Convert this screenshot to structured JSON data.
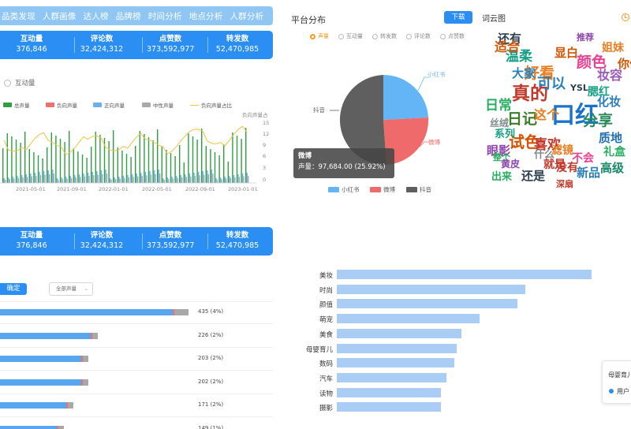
{
  "nav": [
    "品类发现",
    "人群画像",
    "达人榜",
    "品牌榜",
    "时间分析",
    "地点分析",
    "人群分析"
  ],
  "stats": [
    {
      "label": "互动量",
      "value": "376,846"
    },
    {
      "label": "评论数",
      "value": "32,424,312"
    },
    {
      "label": "点赞数",
      "value": "373,592,977"
    },
    {
      "label": "转发数",
      "value": "52,470,985"
    }
  ],
  "trend": {
    "radio_label": "互动量",
    "legend": [
      "总声量",
      "负向声量",
      "正向声量",
      "中性声量",
      "负向声量占比"
    ],
    "right_axis_title": "负向声量占",
    "right_ticks": [
      "15",
      "12",
      "9",
      "6",
      "3",
      "0"
    ],
    "x_ticks": [
      "2021-05-01",
      "2021-09-01",
      "2022-01-01",
      "2022-05-01",
      "2022-09-01",
      "2023-01-01"
    ],
    "colors": {
      "total": "#2ea043",
      "negative": "#f07070",
      "positive": "#6cb2ea",
      "neutral": "#a9a9a9",
      "ratio": "#f3c144"
    }
  },
  "list": {
    "confirm_label": "确定",
    "select_label": "全部声量",
    "rows": [
      {
        "label": "435 (4%)",
        "share": 0.77
      },
      {
        "label": "226 (2%)",
        "share": 0.4
      },
      {
        "label": "203 (2%)",
        "share": 0.36
      },
      {
        "label": "202 (2%)",
        "share": 0.36
      },
      {
        "label": "171 (2%)",
        "share": 0.3
      },
      {
        "label": "149 (1%)",
        "share": 0.26
      }
    ]
  },
  "platform": {
    "title": "平台分布",
    "download_label": "下载",
    "wordcloud_tab": "词云图",
    "radio_tabs": [
      "声量",
      "互动量",
      "转发数",
      "评论数",
      "点赞数"
    ],
    "slices": [
      {
        "name": "小红书",
        "color": "#64b5f6"
      },
      {
        "name": "微博",
        "color": "#ef6a6a"
      },
      {
        "name": "抖音",
        "color": "#5f5f5f"
      }
    ],
    "tooltip_title": "微博",
    "tooltip_body": "声量：97,684.00 (25.92%)",
    "legend": [
      "小红书",
      "微博",
      "抖音"
    ]
  },
  "wordcloud": [
    {
      "t": "口红",
      "c": "#1a73c8"
    },
    {
      "t": "真的",
      "c": "#c0392b"
    },
    {
      "t": "日记",
      "c": "#3d7d2a"
    },
    {
      "t": "分享",
      "c": "#2a8a5a"
    },
    {
      "t": "质地",
      "c": "#1f6fb2"
    },
    {
      "t": "试色",
      "c": "#d35400"
    },
    {
      "t": "眼影",
      "c": "#8e44ad"
    },
    {
      "t": "日常",
      "c": "#27ae60"
    },
    {
      "t": "好看",
      "c": "#e67e22"
    },
    {
      "t": "喜欢",
      "c": "#c0392b"
    },
    {
      "t": "颜色",
      "c": "#e84393"
    },
    {
      "t": "可以",
      "c": "#2980b9"
    },
    {
      "t": "温柔",
      "c": "#16a085"
    },
    {
      "t": "显白",
      "c": "#d35400"
    },
    {
      "t": "妆容",
      "c": "#9b59b6"
    },
    {
      "t": "姐妹",
      "c": "#e67e22"
    },
    {
      "t": "礼盒",
      "c": "#27ae60"
    },
    {
      "t": "新品",
      "c": "#2980b9"
    },
    {
      "t": "高级",
      "c": "#1a8a6a"
    },
    {
      "t": "滤镜",
      "c": "#e67e22"
    },
    {
      "t": "就是",
      "c": "#c0392b"
    },
    {
      "t": "还是",
      "c": "#2c3e50"
    },
    {
      "t": "没有",
      "c": "#c0392b"
    },
    {
      "t": "不会",
      "c": "#e84393"
    },
    {
      "t": "黄皮",
      "c": "#8e44ad"
    },
    {
      "t": "出来",
      "c": "#27ae60"
    },
    {
      "t": "系列",
      "c": "#16a085"
    },
    {
      "t": "丝绒",
      "c": "#7f8c8d"
    },
    {
      "t": "还有",
      "c": "#2c3e50"
    },
    {
      "t": "适合",
      "c": "#d35400"
    },
    {
      "t": "大家",
      "c": "#2980b9"
    },
    {
      "t": "这个",
      "c": "#e67e22"
    },
    {
      "t": "什么",
      "c": "#7f8c8d"
    },
    {
      "t": "深扇",
      "c": "#c0392b"
    },
    {
      "t": "化妆",
      "c": "#2980b9"
    },
    {
      "t": "YSL",
      "c": "#2c3e50"
    },
    {
      "t": "腮红",
      "c": "#16a085"
    },
    {
      "t": "你们",
      "c": "#d35400"
    },
    {
      "t": "整个",
      "c": "#27ae60"
    },
    {
      "t": "推荐",
      "c": "#8e44ad"
    }
  ],
  "categories": [
    {
      "name": "美妆",
      "value": 100
    },
    {
      "name": "时尚",
      "value": 74
    },
    {
      "name": "颜值",
      "value": 71
    },
    {
      "name": "萌宠",
      "value": 56
    },
    {
      "name": "美食",
      "value": 49
    },
    {
      "name": "母婴育儿",
      "value": 47
    },
    {
      "name": "数码",
      "value": 46
    },
    {
      "name": "汽车",
      "value": 43
    },
    {
      "name": "读物",
      "value": 41
    },
    {
      "name": "摄影",
      "value": 41
    }
  ],
  "popup": {
    "title": "母婴育儿",
    "item": "用户"
  }
}
